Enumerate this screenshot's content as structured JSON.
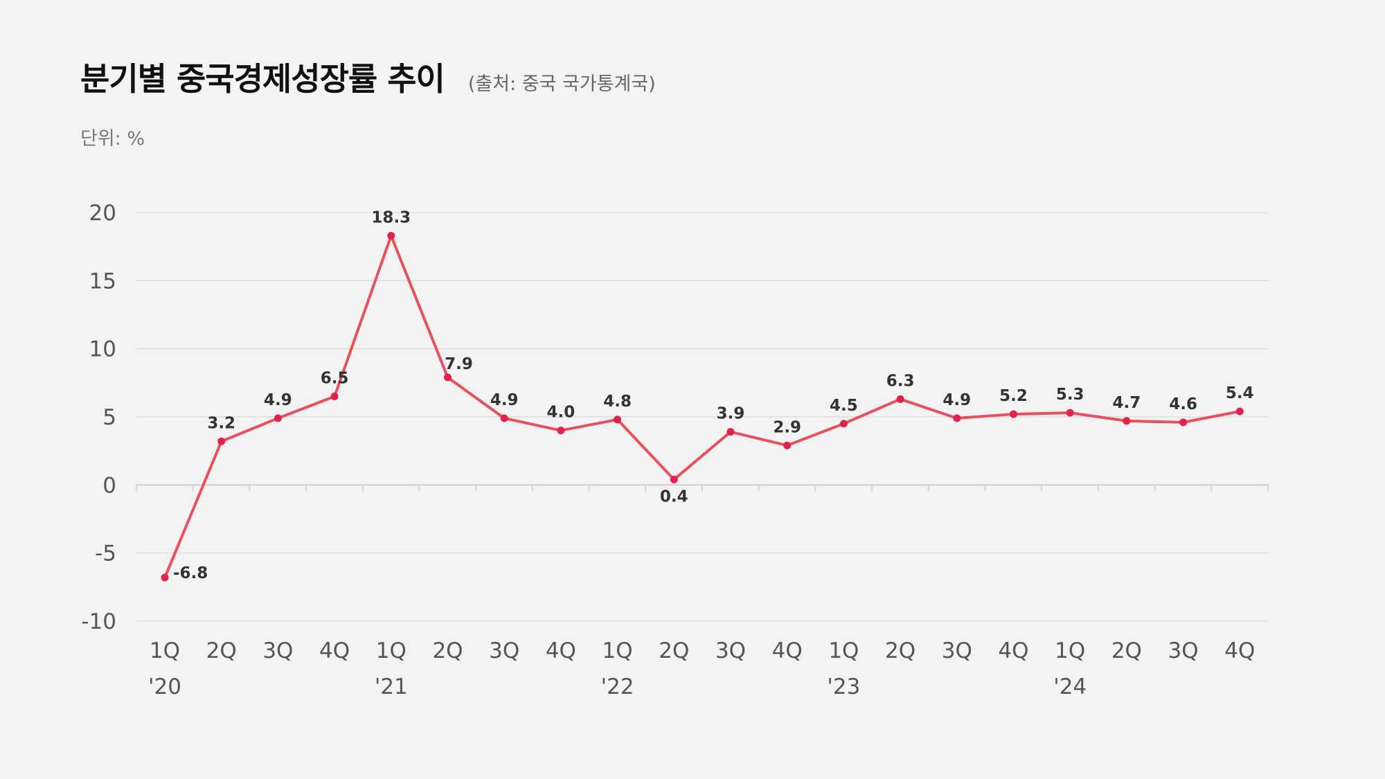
{
  "header": {
    "title": "분기별 중국경제성장률 추이",
    "source": "(출처: 중국 국가통계국)"
  },
  "unit_label": "단위: %",
  "colors": {
    "line": "#e8505b",
    "point": "#e0234e",
    "grid": "#d9d9d9",
    "axis": "#cfcfcf"
  },
  "chart_data": {
    "type": "line",
    "title": "분기별 중국경제성장률 추이",
    "ylabel": "단위: %",
    "ylim": [
      -10,
      20
    ],
    "yticks": [
      20,
      15,
      10,
      5,
      0,
      -5,
      -10
    ],
    "grid": true,
    "categories": [
      "1Q",
      "2Q",
      "3Q",
      "4Q",
      "1Q",
      "2Q",
      "3Q",
      "4Q",
      "1Q",
      "2Q",
      "3Q",
      "4Q",
      "1Q",
      "2Q",
      "3Q",
      "4Q",
      "1Q",
      "2Q",
      "3Q",
      "4Q"
    ],
    "years": [
      {
        "label": "'20",
        "index": 0
      },
      {
        "label": "'21",
        "index": 4
      },
      {
        "label": "'22",
        "index": 8
      },
      {
        "label": "'23",
        "index": 12
      },
      {
        "label": "'24",
        "index": 16
      }
    ],
    "values": [
      -6.8,
      3.2,
      4.9,
      6.5,
      18.3,
      7.9,
      4.9,
      4.0,
      4.8,
      0.4,
      3.9,
      2.9,
      4.5,
      6.3,
      4.9,
      5.2,
      5.3,
      4.7,
      4.6,
      5.4
    ],
    "value_labels": [
      "-6.8",
      "3.2",
      "4.9",
      "6.5",
      "18.3",
      "7.9",
      "4.9",
      "4.0",
      "4.8",
      "0.4",
      "3.9",
      "2.9",
      "4.5",
      "6.3",
      "4.9",
      "5.2",
      "5.3",
      "4.7",
      "4.6",
      "5.4"
    ]
  }
}
